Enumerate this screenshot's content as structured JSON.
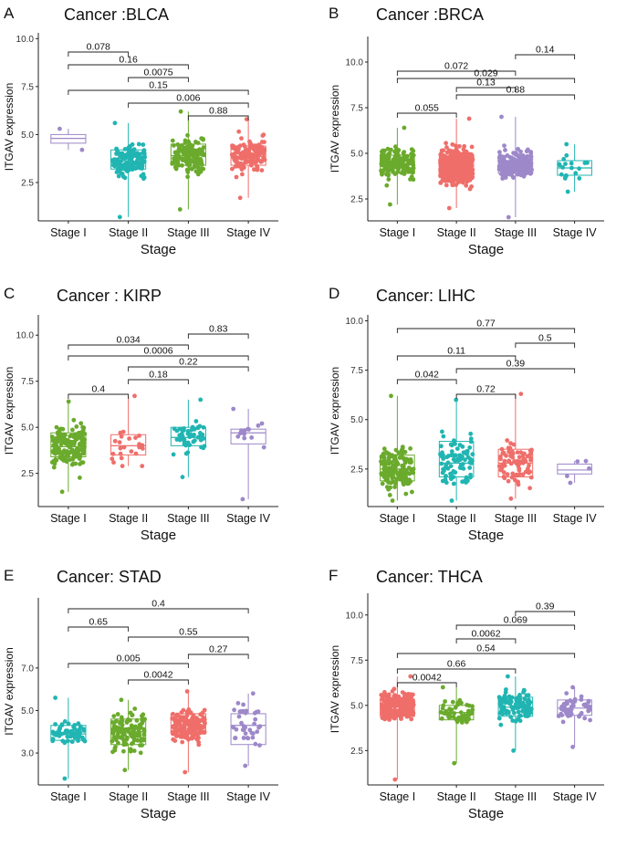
{
  "figure": {
    "colors": {
      "Stage I": "#9d88c9",
      "Stage II": "#20b5b2",
      "Stage III": "#6aaa2c",
      "Stage IV": "#ef6e6a"
    }
  },
  "chart_data": [
    {
      "panel": "A",
      "title": "Cancer :BLCA",
      "type": "box",
      "xlabel": "Stage",
      "ylabel": "ITGAV expression",
      "categories": [
        "Stage I",
        "Stage II",
        "Stage III",
        "Stage IV"
      ],
      "colors": [
        "#9d88c9",
        "#20b5b2",
        "#6aaa2c",
        "#ef6e6a"
      ],
      "n": [
        2,
        130,
        140,
        136
      ],
      "ylim": [
        0.5,
        10.3
      ],
      "yticks": [
        2.5,
        5.0,
        7.5,
        10.0
      ],
      "ytick_labels": [
        "2.5",
        "5.0",
        "7.5",
        "10.0"
      ],
      "boxes": [
        {
          "min": 4.2,
          "q1": 4.55,
          "median": 4.8,
          "q3": 5.0,
          "max": 5.3
        },
        {
          "min": 0.7,
          "q1": 3.2,
          "median": 3.6,
          "q3": 4.2,
          "max": 5.6
        },
        {
          "min": 1.1,
          "q1": 3.4,
          "median": 3.9,
          "q3": 4.5,
          "max": 6.2
        },
        {
          "min": 1.7,
          "q1": 3.4,
          "median": 3.85,
          "q3": 4.4,
          "max": 5.8
        }
      ],
      "comparisons": [
        {
          "a": "Stage I",
          "b": "Stage II",
          "p": "0.078"
        },
        {
          "a": "Stage I",
          "b": "Stage III",
          "p": "0.16"
        },
        {
          "a": "Stage II",
          "b": "Stage III",
          "p": "0.0075"
        },
        {
          "a": "Stage I",
          "b": "Stage IV",
          "p": "0.15"
        },
        {
          "a": "Stage II",
          "b": "Stage IV",
          "p": "0.006"
        },
        {
          "a": "Stage III",
          "b": "Stage IV",
          "p": "0.88"
        }
      ]
    },
    {
      "panel": "B",
      "title": "Cancer :BRCA",
      "type": "box",
      "xlabel": "Stage",
      "ylabel": "ITGAV expression",
      "categories": [
        "Stage I",
        "Stage II",
        "Stage III",
        "Stage IV"
      ],
      "colors": [
        "#6aaa2c",
        "#ef6e6a",
        "#9d88c9",
        "#20b5b2"
      ],
      "n": [
        180,
        600,
        250,
        20
      ],
      "ylim": [
        1.3,
        11.4
      ],
      "yticks": [
        2.5,
        5.0,
        7.5,
        10.0
      ],
      "ytick_labels": [
        "2.5",
        "5.0",
        "7.5",
        "10.0"
      ],
      "boxes": [
        {
          "min": 2.2,
          "q1": 3.9,
          "median": 4.4,
          "q3": 4.9,
          "max": 6.4
        },
        {
          "min": 2.0,
          "q1": 3.8,
          "median": 4.3,
          "q3": 4.9,
          "max": 6.9
        },
        {
          "min": 1.5,
          "q1": 3.9,
          "median": 4.35,
          "q3": 4.85,
          "max": 7.0
        },
        {
          "min": 2.9,
          "q1": 3.8,
          "median": 4.2,
          "q3": 4.6,
          "max": 5.5
        }
      ],
      "comparisons": [
        {
          "a": "Stage III",
          "b": "Stage IV",
          "p": "0.14"
        },
        {
          "a": "Stage I",
          "b": "Stage III",
          "p": "0.072"
        },
        {
          "a": "Stage I",
          "b": "Stage IV",
          "p": "0.029"
        },
        {
          "a": "Stage II",
          "b": "Stage III",
          "p": "0.13"
        },
        {
          "a": "Stage II",
          "b": "Stage IV",
          "p": "0.88"
        },
        {
          "a": "Stage I",
          "b": "Stage II",
          "p": "0.055"
        }
      ]
    },
    {
      "panel": "C",
      "title": "Cancer : KIRP",
      "type": "box",
      "xlabel": "Stage",
      "ylabel": "ITGAV expression",
      "categories": [
        "Stage I",
        "Stage II",
        "Stage III",
        "Stage IV"
      ],
      "colors": [
        "#6aaa2c",
        "#ef6e6a",
        "#20b5b2",
        "#9d88c9"
      ],
      "n": [
        170,
        24,
        50,
        15
      ],
      "ylim": [
        0.7,
        11.1
      ],
      "yticks": [
        2.5,
        5.0,
        7.5,
        10.0
      ],
      "ytick_labels": [
        "2.5",
        "5.0",
        "7.5",
        "10.0"
      ],
      "boxes": [
        {
          "min": 1.5,
          "q1": 3.4,
          "median": 3.95,
          "q3": 4.7,
          "max": 6.4
        },
        {
          "min": 2.9,
          "q1": 3.5,
          "median": 4.0,
          "q3": 4.6,
          "max": 6.7
        },
        {
          "min": 2.3,
          "q1": 4.0,
          "median": 4.45,
          "q3": 5.0,
          "max": 6.5
        },
        {
          "min": 1.1,
          "q1": 4.1,
          "median": 4.7,
          "q3": 4.9,
          "max": 6.0
        }
      ],
      "comparisons": [
        {
          "a": "Stage III",
          "b": "Stage IV",
          "p": "0.83"
        },
        {
          "a": "Stage I",
          "b": "Stage III",
          "p": "0.034"
        },
        {
          "a": "Stage I",
          "b": "Stage IV",
          "p": "0.0006"
        },
        {
          "a": "Stage II",
          "b": "Stage IV",
          "p": "0.22"
        },
        {
          "a": "Stage II",
          "b": "Stage III",
          "p": "0.18"
        },
        {
          "a": "Stage I",
          "b": "Stage II",
          "p": "0.4"
        }
      ]
    },
    {
      "panel": "D",
      "title": "Cancer: LIHC",
      "type": "box",
      "xlabel": "Stage",
      "ylabel": "ITGAV expression",
      "categories": [
        "Stage I",
        "Stage II",
        "Stage III",
        "Stage IV"
      ],
      "colors": [
        "#6aaa2c",
        "#20b5b2",
        "#ef6e6a",
        "#9d88c9"
      ],
      "n": [
        170,
        85,
        85,
        5
      ],
      "ylim": [
        0.6,
        10.3
      ],
      "yticks": [
        2.5,
        5.0,
        7.5,
        10.0
      ],
      "ytick_labels": [
        "2.5",
        "5.0",
        "7.5",
        "10.0"
      ],
      "boxes": [
        {
          "min": 0.9,
          "q1": 1.9,
          "median": 2.5,
          "q3": 3.2,
          "max": 6.2
        },
        {
          "min": 0.9,
          "q1": 2.1,
          "median": 2.8,
          "q3": 3.9,
          "max": 6.0
        },
        {
          "min": 1.0,
          "q1": 2.1,
          "median": 2.8,
          "q3": 3.5,
          "max": 6.3
        },
        {
          "min": 1.8,
          "q1": 2.25,
          "median": 2.45,
          "q3": 2.75,
          "max": 2.9
        }
      ],
      "comparisons": [
        {
          "a": "Stage I",
          "b": "Stage IV",
          "p": "0.77"
        },
        {
          "a": "Stage III",
          "b": "Stage IV",
          "p": "0.5"
        },
        {
          "a": "Stage I",
          "b": "Stage III",
          "p": "0.11"
        },
        {
          "a": "Stage II",
          "b": "Stage IV",
          "p": "0.39"
        },
        {
          "a": "Stage I",
          "b": "Stage II",
          "p": "0.042"
        },
        {
          "a": "Stage II",
          "b": "Stage III",
          "p": "0.72"
        }
      ]
    },
    {
      "panel": "E",
      "title": "Cancer: STAD",
      "type": "box",
      "xlabel": "Stage",
      "ylabel": "ITGAV expression",
      "categories": [
        "Stage I",
        "Stage II",
        "Stage III",
        "Stage IV"
      ],
      "colors": [
        "#20b5b2",
        "#6aaa2c",
        "#ef6e6a",
        "#9d88c9"
      ],
      "n": [
        55,
        120,
        165,
        38
      ],
      "ylim": [
        1.5,
        10.3
      ],
      "yticks": [
        3.0,
        5.0,
        7.0
      ],
      "ytick_labels": [
        "3.0",
        "5.0",
        "7.0"
      ],
      "boxes": [
        {
          "min": 1.8,
          "q1": 3.6,
          "median": 3.9,
          "q3": 4.3,
          "max": 5.6
        },
        {
          "min": 2.2,
          "q1": 3.4,
          "median": 4.0,
          "q3": 4.6,
          "max": 5.5
        },
        {
          "min": 2.1,
          "q1": 3.9,
          "median": 4.3,
          "q3": 4.85,
          "max": 5.9
        },
        {
          "min": 2.4,
          "q1": 3.4,
          "median": 4.3,
          "q3": 4.85,
          "max": 5.8
        }
      ],
      "comparisons": [
        {
          "a": "Stage I",
          "b": "Stage IV",
          "p": "0.4"
        },
        {
          "a": "Stage I",
          "b": "Stage II",
          "p": "0.65"
        },
        {
          "a": "Stage II",
          "b": "Stage IV",
          "p": "0.55"
        },
        {
          "a": "Stage III",
          "b": "Stage IV",
          "p": "0.27"
        },
        {
          "a": "Stage I",
          "b": "Stage III",
          "p": "0.005"
        },
        {
          "a": "Stage II",
          "b": "Stage III",
          "p": "0.0042"
        }
      ]
    },
    {
      "panel": "F",
      "title": "Cancer: THCA",
      "type": "box",
      "xlabel": "Stage",
      "ylabel": "ITGAV expression",
      "categories": [
        "Stage I",
        "Stage II",
        "Stage III",
        "Stage IV"
      ],
      "colors": [
        "#ef6e6a",
        "#6aaa2c",
        "#20b5b2",
        "#9d88c9"
      ],
      "n": [
        280,
        52,
        110,
        55
      ],
      "ylim": [
        0.6,
        11.2
      ],
      "yticks": [
        2.5,
        5.0,
        7.5,
        10.0
      ],
      "ytick_labels": [
        "2.5",
        "5.0",
        "7.5",
        "10.0"
      ],
      "boxes": [
        {
          "min": 0.9,
          "q1": 4.4,
          "median": 4.9,
          "q3": 5.35,
          "max": 6.6
        },
        {
          "min": 1.8,
          "q1": 4.2,
          "median": 4.6,
          "q3": 5.0,
          "max": 6.0
        },
        {
          "min": 2.5,
          "q1": 4.4,
          "median": 4.9,
          "q3": 5.45,
          "max": 6.6
        },
        {
          "min": 2.7,
          "q1": 4.45,
          "median": 4.85,
          "q3": 5.3,
          "max": 6.0
        }
      ],
      "comparisons": [
        {
          "a": "Stage III",
          "b": "Stage IV",
          "p": "0.39"
        },
        {
          "a": "Stage II",
          "b": "Stage IV",
          "p": "0.069"
        },
        {
          "a": "Stage II",
          "b": "Stage III",
          "p": "0.0062"
        },
        {
          "a": "Stage I",
          "b": "Stage IV",
          "p": "0.54"
        },
        {
          "a": "Stage I",
          "b": "Stage III",
          "p": "0.66"
        },
        {
          "a": "Stage I",
          "b": "Stage II",
          "p": "0.0042"
        }
      ]
    }
  ]
}
